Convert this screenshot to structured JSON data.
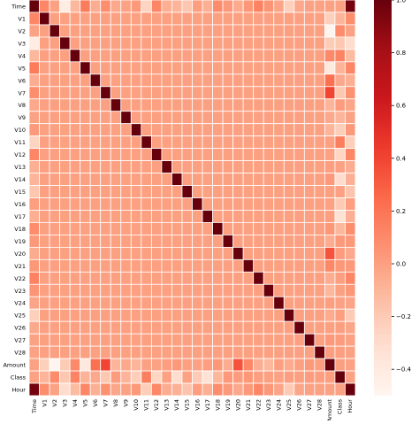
{
  "chart_data": {
    "type": "heatmap",
    "title": "",
    "xlabel": "",
    "ylabel": "",
    "labels": [
      "Time",
      "V1",
      "V2",
      "V3",
      "V4",
      "V5",
      "V6",
      "V7",
      "V8",
      "V9",
      "V10",
      "V11",
      "V12",
      "V13",
      "V14",
      "V15",
      "V16",
      "V17",
      "V18",
      "V19",
      "V20",
      "V21",
      "V22",
      "V23",
      "V24",
      "V25",
      "V26",
      "V27",
      "V28",
      "Amount",
      "Class",
      "Hour"
    ],
    "colorbar": {
      "range": [
        -0.5,
        1.0
      ],
      "ticks": [
        -0.4,
        -0.2,
        0.0,
        0.2,
        0.4,
        0.6,
        0.8,
        1.0
      ],
      "tick_labels": [
        "−0.4",
        "−0.2",
        "0.0",
        "0.2",
        "0.4",
        "0.6",
        "0.8",
        "1.0"
      ],
      "colormap": "Reds"
    },
    "grid": "white cell borders",
    "values_note": "symmetric correlation matrix; unlisted pairs are 0.0",
    "diagonal": 1.0,
    "pairs": [
      [
        "Time",
        "V1",
        0.12
      ],
      [
        "Time",
        "V2",
        -0.01
      ],
      [
        "Time",
        "V3",
        -0.42
      ],
      [
        "Time",
        "V4",
        -0.11
      ],
      [
        "Time",
        "V5",
        0.17
      ],
      [
        "Time",
        "V6",
        -0.06
      ],
      [
        "Time",
        "V7",
        0.08
      ],
      [
        "Time",
        "V8",
        -0.04
      ],
      [
        "Time",
        "V9",
        -0.01
      ],
      [
        "Time",
        "V10",
        0.03
      ],
      [
        "Time",
        "V11",
        -0.25
      ],
      [
        "Time",
        "V12",
        0.12
      ],
      [
        "Time",
        "V13",
        -0.07
      ],
      [
        "Time",
        "V14",
        -0.1
      ],
      [
        "Time",
        "V15",
        -0.18
      ],
      [
        "Time",
        "V16",
        0.01
      ],
      [
        "Time",
        "V17",
        -0.07
      ],
      [
        "Time",
        "V18",
        0.09
      ],
      [
        "Time",
        "V19",
        0.03
      ],
      [
        "Time",
        "V20",
        -0.05
      ],
      [
        "Time",
        "V21",
        0.04
      ],
      [
        "Time",
        "V22",
        0.14
      ],
      [
        "Time",
        "V23",
        0.05
      ],
      [
        "Time",
        "V24",
        -0.02
      ],
      [
        "Time",
        "V25",
        -0.23
      ],
      [
        "Time",
        "V26",
        -0.04
      ],
      [
        "Time",
        "V27",
        -0.01
      ],
      [
        "Time",
        "V28",
        -0.01
      ],
      [
        "Time",
        "Amount",
        -0.01
      ],
      [
        "Time",
        "Class",
        -0.01
      ],
      [
        "Time",
        "Hour",
        0.96
      ],
      [
        "V1",
        "Amount",
        -0.23
      ],
      [
        "V2",
        "Amount",
        -0.53
      ],
      [
        "V3",
        "Amount",
        -0.21
      ],
      [
        "V4",
        "Amount",
        0.1
      ],
      [
        "V5",
        "Amount",
        -0.39
      ],
      [
        "V6",
        "Amount",
        0.22
      ],
      [
        "V7",
        "Amount",
        0.4
      ],
      [
        "V8",
        "Amount",
        -0.1
      ],
      [
        "V9",
        "Amount",
        -0.04
      ],
      [
        "V10",
        "Amount",
        -0.1
      ],
      [
        "V12",
        "Amount",
        -0.01
      ],
      [
        "V13",
        "Amount",
        0.01
      ],
      [
        "V14",
        "Amount",
        0.03
      ],
      [
        "V15",
        "Amount",
        -0.003
      ],
      [
        "V16",
        "Amount",
        -0.004
      ],
      [
        "V17",
        "Amount",
        0.01
      ],
      [
        "V18",
        "Amount",
        0.04
      ],
      [
        "V19",
        "Amount",
        -0.06
      ],
      [
        "V20",
        "Amount",
        0.34
      ],
      [
        "V21",
        "Amount",
        0.11
      ],
      [
        "V22",
        "Amount",
        -0.06
      ],
      [
        "V23",
        "Amount",
        -0.11
      ],
      [
        "V24",
        "Amount",
        0.005
      ],
      [
        "V25",
        "Amount",
        -0.05
      ],
      [
        "V26",
        "Amount",
        -0.003
      ],
      [
        "V27",
        "Amount",
        0.03
      ],
      [
        "V28",
        "Amount",
        0.01
      ],
      [
        "V1",
        "Class",
        -0.1
      ],
      [
        "V2",
        "Class",
        0.09
      ],
      [
        "V3",
        "Class",
        -0.19
      ],
      [
        "V4",
        "Class",
        0.13
      ],
      [
        "V5",
        "Class",
        -0.09
      ],
      [
        "V6",
        "Class",
        -0.04
      ],
      [
        "V7",
        "Class",
        -0.19
      ],
      [
        "V8",
        "Class",
        0.02
      ],
      [
        "V9",
        "Class",
        -0.1
      ],
      [
        "V10",
        "Class",
        -0.22
      ],
      [
        "V11",
        "Class",
        0.15
      ],
      [
        "V12",
        "Class",
        -0.26
      ],
      [
        "V13",
        "Class",
        -0.005
      ],
      [
        "V14",
        "Class",
        -0.3
      ],
      [
        "V15",
        "Class",
        -0.004
      ],
      [
        "V16",
        "Class",
        -0.2
      ],
      [
        "V17",
        "Class",
        -0.33
      ],
      [
        "V18",
        "Class",
        -0.11
      ],
      [
        "V19",
        "Class",
        0.03
      ],
      [
        "V20",
        "Class",
        0.02
      ],
      [
        "V21",
        "Class",
        0.04
      ],
      [
        "V22",
        "Class",
        0.001
      ],
      [
        "V23",
        "Class",
        -0.003
      ],
      [
        "V24",
        "Class",
        -0.007
      ],
      [
        "V25",
        "Class",
        0.003
      ],
      [
        "V26",
        "Class",
        0.004
      ],
      [
        "V27",
        "Class",
        0.02
      ],
      [
        "V28",
        "Class",
        0.01
      ],
      [
        "Amount",
        "Class",
        0.006
      ],
      [
        "V1",
        "Hour",
        0.08
      ],
      [
        "V2",
        "Hour",
        -0.01
      ],
      [
        "V3",
        "Hour",
        -0.3
      ],
      [
        "V4",
        "Hour",
        -0.13
      ],
      [
        "V5",
        "Hour",
        0.12
      ],
      [
        "V6",
        "Hour",
        -0.07
      ],
      [
        "V7",
        "Hour",
        0.07
      ],
      [
        "V8",
        "Hour",
        -0.03
      ],
      [
        "V9",
        "Hour",
        -0.01
      ],
      [
        "V10",
        "Hour",
        0.03
      ],
      [
        "V11",
        "Hour",
        -0.22
      ],
      [
        "V12",
        "Hour",
        0.11
      ],
      [
        "V13",
        "Hour",
        -0.06
      ],
      [
        "V14",
        "Hour",
        -0.08
      ],
      [
        "V15",
        "Hour",
        -0.17
      ],
      [
        "V16",
        "Hour",
        0.01
      ],
      [
        "V17",
        "Hour",
        -0.07
      ],
      [
        "V18",
        "Hour",
        0.08
      ],
      [
        "V19",
        "Hour",
        0.03
      ],
      [
        "V20",
        "Hour",
        -0.04
      ],
      [
        "V21",
        "Hour",
        0.03
      ],
      [
        "V22",
        "Hour",
        0.12
      ],
      [
        "V23",
        "Hour",
        0.04
      ],
      [
        "V24",
        "Hour",
        -0.02
      ],
      [
        "V25",
        "Hour",
        -0.2
      ],
      [
        "V26",
        "Hour",
        -0.03
      ],
      [
        "V27",
        "Hour",
        -0.01
      ],
      [
        "V28",
        "Hour",
        -0.01
      ],
      [
        "Amount",
        "Hour",
        -0.01
      ],
      [
        "Class",
        "Hour",
        -0.01
      ]
    ]
  }
}
